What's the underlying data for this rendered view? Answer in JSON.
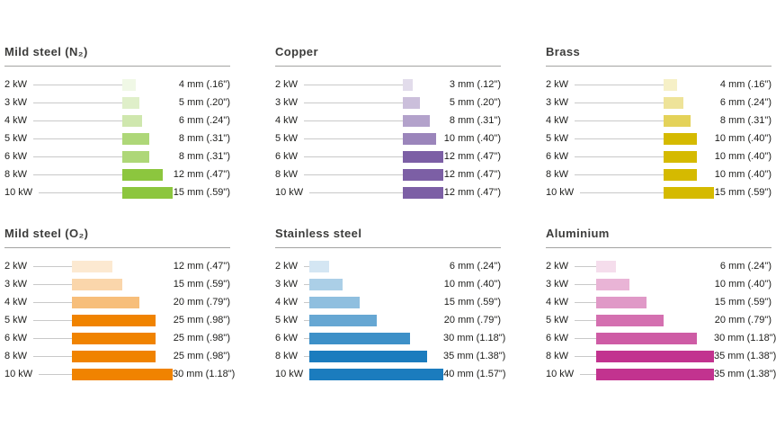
{
  "chart_data": [
    {
      "type": "bar",
      "material": "Mild steel (N₂)",
      "color": "#8cc63e",
      "unit": "mm",
      "categories": [
        "2 kW",
        "3 kW",
        "4 kW",
        "5 kW",
        "6 kW",
        "8 kW",
        "10 kW"
      ],
      "values": [
        4,
        5,
        6,
        8,
        8,
        12,
        15
      ],
      "value_labels": [
        "4 mm (.16\")",
        "5 mm (.20\")",
        "6 mm (.24\")",
        "8 mm (.31\")",
        "8 mm (.31\")",
        "12 mm (.47\")",
        "15 mm (.59\")"
      ],
      "shades": [
        0.13,
        0.28,
        0.42,
        0.7,
        0.7,
        1,
        1
      ]
    },
    {
      "type": "bar",
      "material": "Copper",
      "color": "#7c5fa5",
      "unit": "mm",
      "categories": [
        "2 kW",
        "3 kW",
        "4 kW",
        "5 kW",
        "6 kW",
        "8 kW",
        "10 kW"
      ],
      "values": [
        3,
        5,
        8,
        10,
        12,
        12,
        12
      ],
      "value_labels": [
        "3 mm (.12\")",
        "5 mm (.20\")",
        "8 mm (.31\")",
        "10 mm (.40\")",
        "12 mm (.47\")",
        "12 mm (.47\")",
        "12 mm (.47\")"
      ],
      "shades": [
        0.22,
        0.4,
        0.58,
        0.76,
        1,
        1,
        1
      ]
    },
    {
      "type": "bar",
      "material": "Brass",
      "color": "#d5ba00",
      "unit": "mm",
      "categories": [
        "2 kW",
        "3 kW",
        "4 kW",
        "5 kW",
        "6 kW",
        "8 kW",
        "10 kW"
      ],
      "values": [
        4,
        6,
        8,
        10,
        10,
        10,
        15
      ],
      "value_labels": [
        "4 mm (.16\")",
        "6 mm (.24\")",
        "8 mm (.31\")",
        "10 mm (.40\")",
        "10 mm (.40\")",
        "10 mm (.40\")",
        "15 mm (.59\")"
      ],
      "shades": [
        0.22,
        0.4,
        0.65,
        1,
        1,
        1,
        1
      ]
    },
    {
      "type": "bar",
      "material": "Mild steel (O₂)",
      "color": "#f08300",
      "unit": "mm",
      "categories": [
        "2 kW",
        "3 kW",
        "4 kW",
        "5 kW",
        "6 kW",
        "8 kW",
        "10 kW"
      ],
      "values": [
        12,
        15,
        20,
        25,
        25,
        25,
        30
      ],
      "value_labels": [
        "12 mm (.47\")",
        "15 mm (.59\")",
        "20 mm (.79\")",
        "25 mm (.98\")",
        "25 mm (.98\")",
        "25 mm (.98\")",
        "30 mm (1.18\")"
      ],
      "shades": [
        0.18,
        0.33,
        0.52,
        1,
        1,
        1,
        1
      ]
    },
    {
      "type": "bar",
      "material": "Stainless steel",
      "color": "#1b7cbe",
      "unit": "mm",
      "categories": [
        "2 kW",
        "3 kW",
        "4 kW",
        "5 kW",
        "6 kW",
        "8 kW",
        "10 kW"
      ],
      "values": [
        6,
        10,
        15,
        20,
        30,
        35,
        40
      ],
      "value_labels": [
        "6 mm (.24\")",
        "10 mm (.40\")",
        "15 mm (.59\")",
        "20 mm (.79\")",
        "30 mm (1.18\")",
        "35 mm (1.38\")",
        "40 mm (1.57\")"
      ],
      "shades": [
        0.19,
        0.37,
        0.49,
        0.67,
        0.85,
        1,
        1
      ]
    },
    {
      "type": "bar",
      "material": "Aluminium",
      "color": "#c2338f",
      "unit": "mm",
      "categories": [
        "2 kW",
        "3 kW",
        "4 kW",
        "5 kW",
        "6 kW",
        "8 kW",
        "10 kW"
      ],
      "values": [
        6,
        10,
        15,
        20,
        30,
        35,
        35
      ],
      "value_labels": [
        "6 mm (.24\")",
        "10 mm (.40\")",
        "15 mm (.59\")",
        "20 mm (.79\")",
        "30 mm (1.18\")",
        "35 mm (1.38\")",
        "35 mm (1.38\")"
      ],
      "shades": [
        0.17,
        0.37,
        0.5,
        0.7,
        0.8,
        1,
        1
      ]
    }
  ]
}
